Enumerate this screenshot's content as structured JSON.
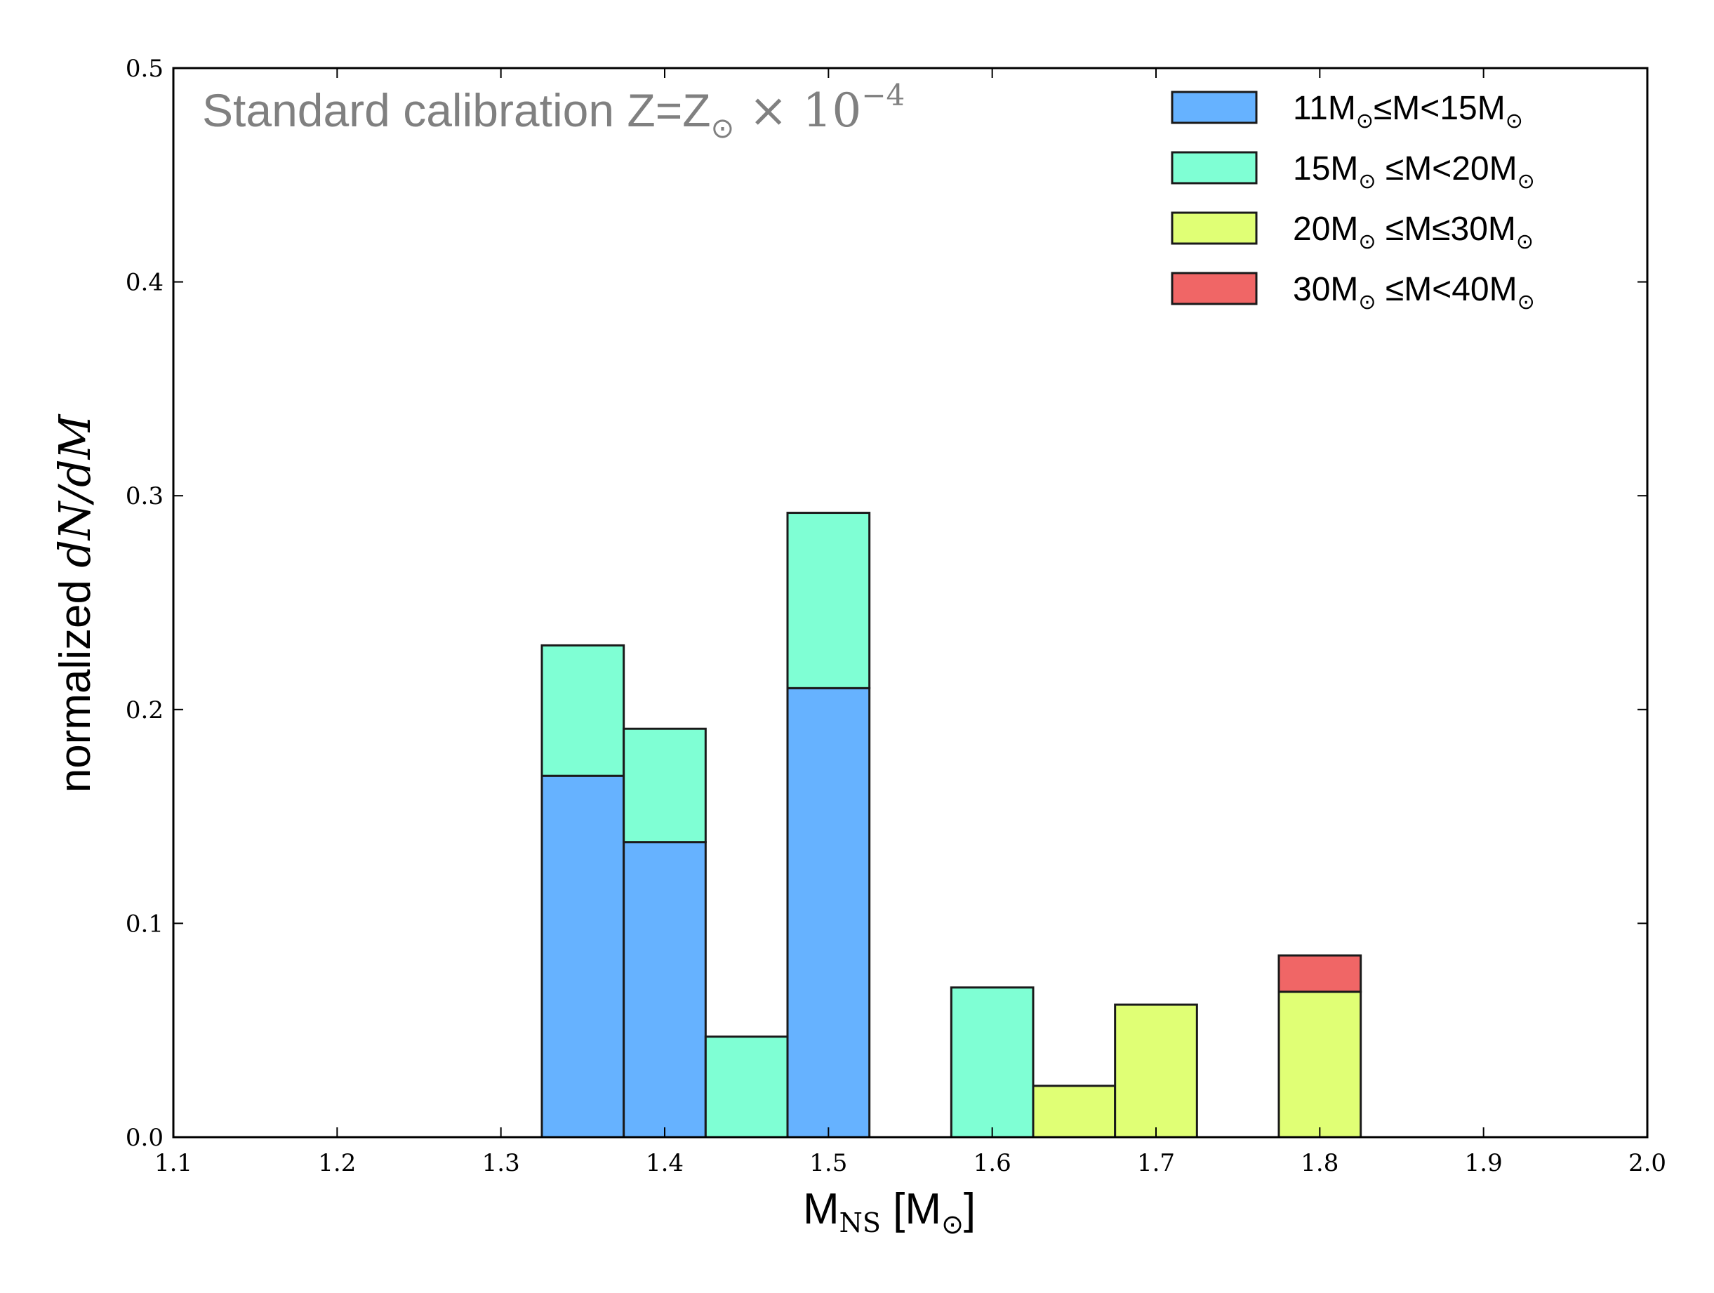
{
  "chart_data": {
    "type": "bar",
    "stacked": true,
    "annotation": {
      "text": "Standard calibration Z=Z",
      "sub": "⊙",
      "math": " × 10",
      "sup": "−4"
    },
    "xlabel": {
      "main": "M",
      "sub": "NS",
      "rest": " [M",
      "sub2": "⊙",
      "close": "]"
    },
    "ylabel": {
      "text": "normalized ",
      "math": "dN/dM"
    },
    "xlim": [
      1.1,
      2.0
    ],
    "ylim": [
      0.0,
      0.5
    ],
    "xticks": [
      "1.1",
      "1.2",
      "1.3",
      "1.4",
      "1.5",
      "1.6",
      "1.7",
      "1.8",
      "1.9",
      "2.0"
    ],
    "yticks": [
      "0.0",
      "0.1",
      "0.2",
      "0.3",
      "0.4",
      "0.5"
    ],
    "bin_width": 0.05,
    "bins": [
      1.35,
      1.4,
      1.45,
      1.5,
      1.55,
      1.6,
      1.65,
      1.7,
      1.75,
      1.8
    ],
    "series": [
      {
        "name": "11M⊙≤M<15M⊙",
        "legend": [
          "11M",
          "⊙",
          "≤M<15M",
          "⊙"
        ],
        "color": "#66b2ff",
        "values": [
          0.169,
          0.138,
          0,
          0.21,
          0,
          0,
          0,
          0,
          0,
          0
        ]
      },
      {
        "name": "15M⊙ ≤M<20M⊙",
        "legend": [
          "15M",
          "⊙",
          " ≤M<20M",
          "⊙"
        ],
        "color": "#7fffd4",
        "values": [
          0.061,
          0.053,
          0.047,
          0.082,
          0,
          0.07,
          0,
          0,
          0,
          0
        ]
      },
      {
        "name": "20M⊙ ≤M≤30M⊙",
        "legend": [
          "20M",
          "⊙",
          " ≤M≤30M",
          "⊙"
        ],
        "color": "#e0ff75",
        "values": [
          0,
          0,
          0,
          0,
          0,
          0,
          0.024,
          0.062,
          0,
          0.068
        ]
      },
      {
        "name": "30M⊙ ≤M<40M⊙",
        "legend": [
          "30M",
          "⊙",
          " ≤M<40M",
          "⊙"
        ],
        "color": "#f06666",
        "values": [
          0,
          0,
          0,
          0,
          0,
          0,
          0,
          0,
          0,
          0.017
        ]
      }
    ],
    "grid": false,
    "legend_position": "top-right"
  }
}
